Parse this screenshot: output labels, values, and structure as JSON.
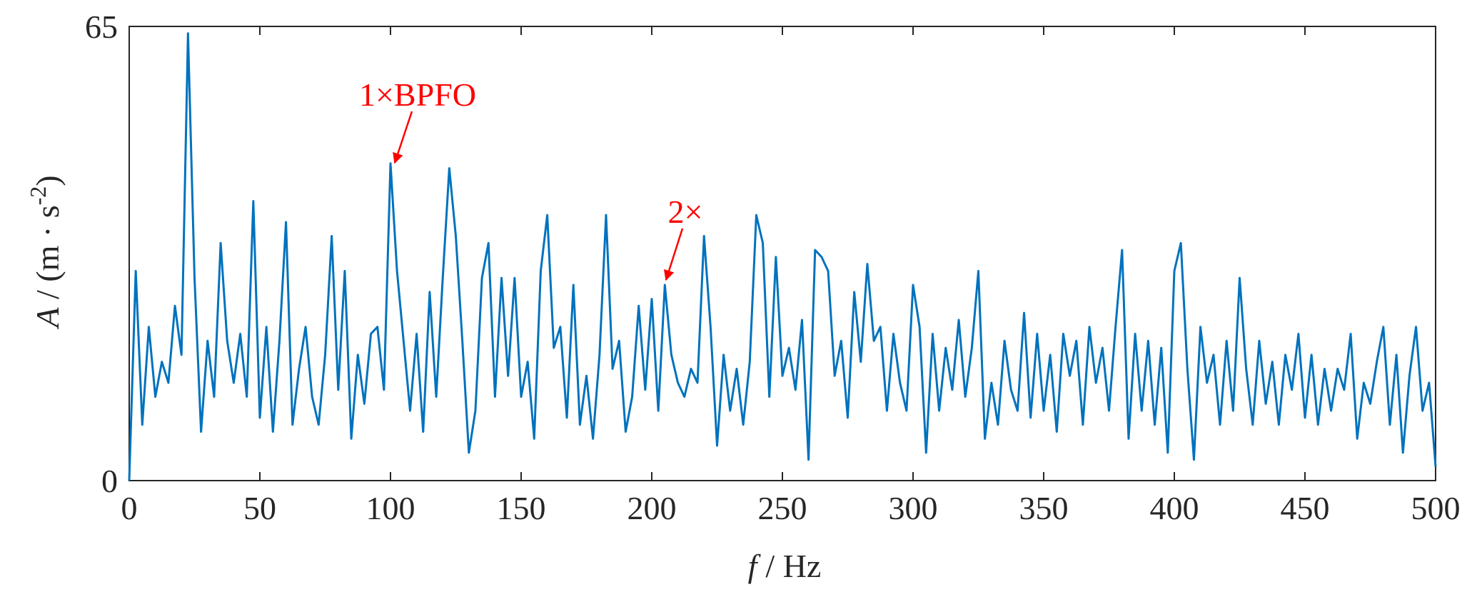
{
  "chart_data": {
    "type": "line",
    "x_label": {
      "symbol": "f",
      "text": "/  Hz"
    },
    "y_label": {
      "symbol": "A",
      "text": " / (m · s",
      "sup": "-2",
      "end": ")"
    },
    "annotations": [
      "1×BPFO",
      "2×"
    ],
    "x": [
      0,
      2.5,
      5,
      7.5,
      10,
      12.5,
      15,
      17.5,
      20,
      22.5,
      25,
      27.5,
      30,
      32.5,
      35,
      37.5,
      40,
      42.5,
      45,
      47.5,
      50,
      52.5,
      55,
      57.5,
      60,
      62.5,
      65,
      67.5,
      70,
      72.5,
      75,
      77.5,
      80,
      82.5,
      85,
      87.5,
      90,
      92.5,
      95,
      97.5,
      100,
      102.5,
      105,
      107.5,
      110,
      112.5,
      115,
      117.5,
      120,
      122.5,
      125,
      127.5,
      130,
      132.5,
      135,
      137.5,
      140,
      142.5,
      145,
      147.5,
      150,
      152.5,
      155,
      157.5,
      160,
      162.5,
      165,
      167.5,
      170,
      172.5,
      175,
      177.5,
      180,
      182.5,
      185,
      187.5,
      190,
      192.5,
      195,
      197.5,
      200,
      202.5,
      205,
      207.5,
      210,
      212.5,
      215,
      217.5,
      220,
      222.5,
      225,
      227.5,
      230,
      232.5,
      235,
      237.5,
      240,
      242.5,
      245,
      247.5,
      250,
      252.5,
      255,
      257.5,
      260,
      262.5,
      265,
      267.5,
      270,
      272.5,
      275,
      277.5,
      280,
      282.5,
      285,
      287.5,
      290,
      292.5,
      295,
      297.5,
      300,
      302.5,
      305,
      307.5,
      310,
      312.5,
      315,
      317.5,
      320,
      322.5,
      325,
      327.5,
      330,
      332.5,
      335,
      337.5,
      340,
      342.5,
      345,
      347.5,
      350,
      352.5,
      355,
      357.5,
      360,
      362.5,
      365,
      367.5,
      370,
      372.5,
      375,
      377.5,
      380,
      382.5,
      385,
      387.5,
      390,
      392.5,
      395,
      397.5,
      400,
      402.5,
      405,
      407.5,
      410,
      412.5,
      415,
      417.5,
      420,
      422.5,
      425,
      427.5,
      430,
      432.5,
      435,
      437.5,
      440,
      442.5,
      445,
      447.5,
      450,
      452.5,
      455,
      457.5,
      460,
      462.5,
      465,
      467.5,
      470,
      472.5,
      475,
      477.5,
      480,
      482.5,
      485,
      487.5,
      490,
      492.5,
      495,
      497.5,
      500
    ],
    "series": [
      {
        "color": "#0072bd",
        "values": [
          0,
          30,
          8,
          22,
          12,
          17,
          14,
          25,
          18,
          64,
          29,
          7,
          20,
          12,
          34,
          20,
          14,
          21,
          12,
          40,
          9,
          22,
          7,
          20,
          37,
          8,
          16,
          22,
          12,
          8,
          18,
          35,
          13,
          30,
          6,
          18,
          11,
          21,
          22,
          13,
          45.4,
          30,
          20,
          10,
          21,
          7,
          27,
          12,
          29,
          44.7,
          35,
          20,
          4,
          10,
          29,
          34,
          12,
          29,
          15,
          29,
          12,
          17,
          6,
          30,
          38,
          19,
          22,
          9,
          28,
          8,
          15,
          6,
          18,
          38,
          16,
          20,
          7,
          12,
          25,
          13,
          26,
          10,
          28,
          18,
          14,
          12,
          16,
          14,
          35,
          22,
          5,
          18,
          10,
          16,
          8,
          17,
          38,
          34,
          12,
          32,
          15,
          19,
          13,
          23,
          3,
          33,
          32,
          30,
          15,
          20,
          9,
          27,
          17,
          31,
          20,
          22,
          10,
          21,
          14,
          10,
          28,
          22,
          4,
          21,
          10,
          19,
          13,
          23,
          12,
          19,
          30,
          6,
          14,
          8,
          20,
          13,
          10,
          24,
          9,
          21,
          10,
          18,
          7,
          21,
          15,
          20,
          8,
          22,
          14,
          19,
          10,
          22,
          33,
          6,
          21,
          10,
          20,
          8,
          19,
          4,
          30,
          34,
          16,
          3,
          22,
          14,
          18,
          8,
          20,
          10,
          29,
          16,
          8,
          20,
          11,
          17,
          8,
          18,
          13,
          21,
          9,
          18,
          8,
          16,
          10,
          16,
          13,
          21,
          6,
          14,
          11,
          17,
          22,
          8,
          18,
          4,
          15,
          22,
          10,
          14,
          2
        ]
      }
    ],
    "xlim": [
      0,
      500
    ],
    "xticks": [
      0,
      50,
      100,
      150,
      200,
      250,
      300,
      350,
      400,
      450,
      500
    ],
    "ylim": [
      0,
      65
    ],
    "yticks": [
      0,
      65
    ],
    "grid": false,
    "annotation_color": "#ff0000"
  }
}
